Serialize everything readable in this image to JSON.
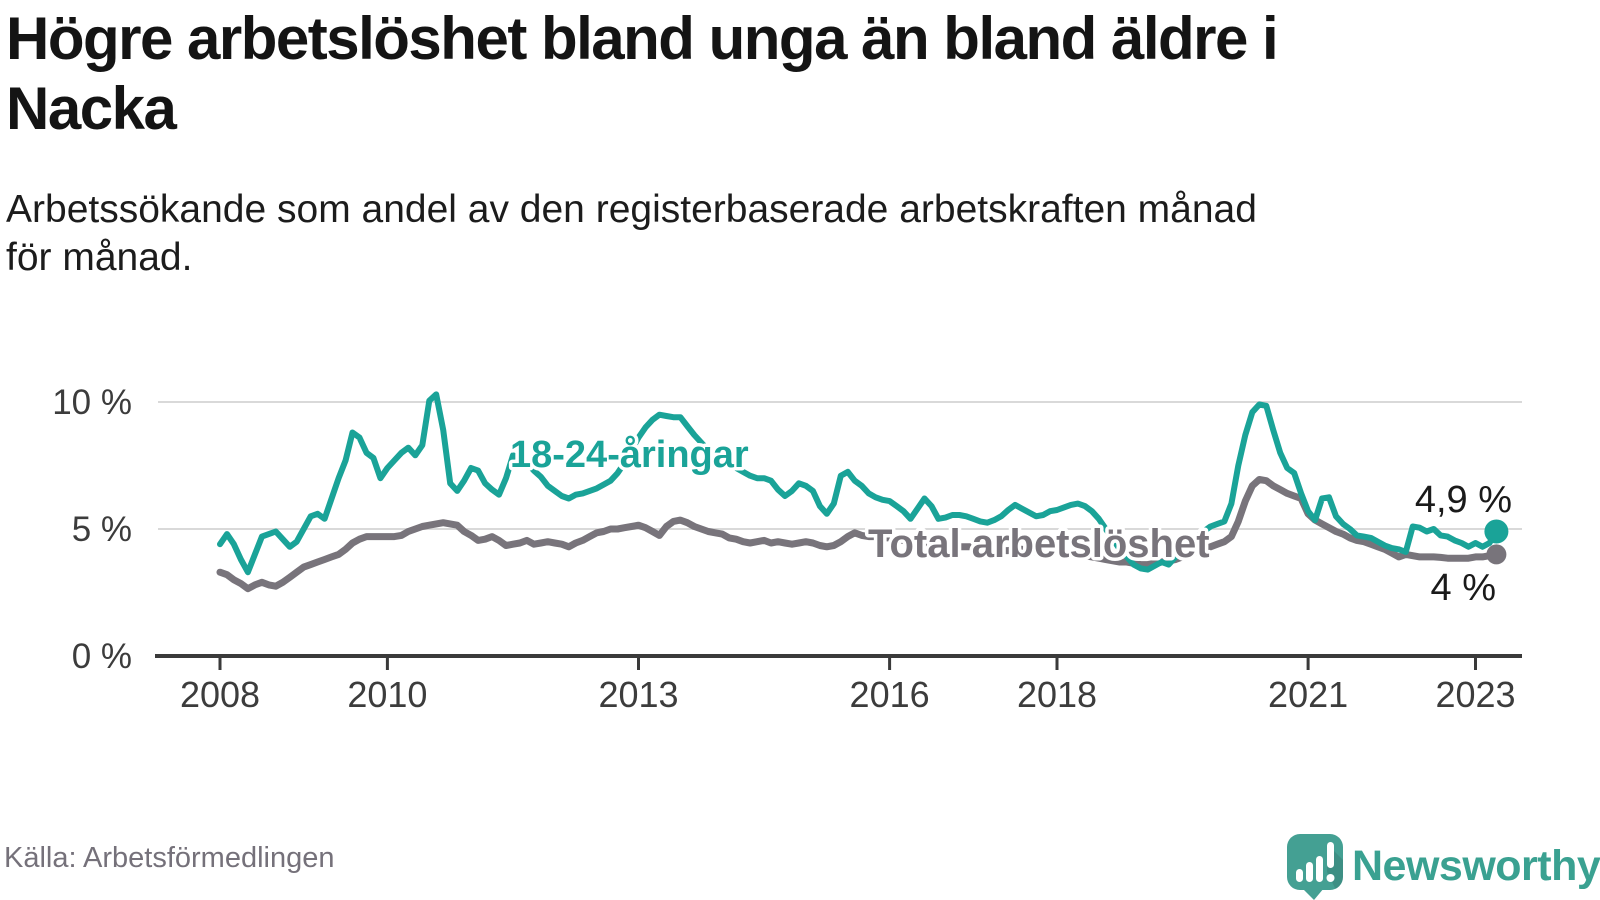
{
  "header": {
    "title": "Högre arbetslöshet bland unga än bland äldre i\nNacka",
    "subtitle": "Arbetssökande som andel av den registerbaserade arbetskraften månad\nför månad."
  },
  "chart_data": {
    "type": "line",
    "x_start_year": 2008,
    "x_interval": "monthly",
    "x_end": "2023-04",
    "x_ticks": [
      2008,
      2010,
      2013,
      2016,
      2018,
      2021,
      2023
    ],
    "y_ticks": [
      {
        "value": 0,
        "label": "0 %"
      },
      {
        "value": 5,
        "label": "5 %"
      },
      {
        "value": 10,
        "label": "10 %"
      }
    ],
    "ylim": [
      0,
      12
    ],
    "grid": "horizontal-at-5-and-10",
    "series": [
      {
        "name": "Total arbetslöshet",
        "label_text": "Total arbetslöshet",
        "color": "#78747b",
        "end_value_label": "4 %",
        "values": [
          3.3,
          3.2,
          3.0,
          2.85,
          2.65,
          2.8,
          2.9,
          2.8,
          2.75,
          2.9,
          3.1,
          3.3,
          3.5,
          3.6,
          3.7,
          3.8,
          3.9,
          4.0,
          4.2,
          4.45,
          4.6,
          4.7,
          4.7,
          4.7,
          4.7,
          4.7,
          4.75,
          4.9,
          5.0,
          5.1,
          5.15,
          5.2,
          5.25,
          5.2,
          5.15,
          4.9,
          4.75,
          4.55,
          4.6,
          4.7,
          4.55,
          4.35,
          4.4,
          4.45,
          4.55,
          4.4,
          4.45,
          4.5,
          4.45,
          4.4,
          4.3,
          4.45,
          4.55,
          4.7,
          4.85,
          4.9,
          5.0,
          5.0,
          5.05,
          5.1,
          5.15,
          5.05,
          4.9,
          4.75,
          5.1,
          5.3,
          5.35,
          5.25,
          5.1,
          5.0,
          4.9,
          4.85,
          4.8,
          4.65,
          4.6,
          4.5,
          4.45,
          4.5,
          4.55,
          4.45,
          4.5,
          4.45,
          4.4,
          4.45,
          4.5,
          4.45,
          4.35,
          4.3,
          4.35,
          4.5,
          4.7,
          4.85,
          4.75,
          4.7,
          4.7,
          4.65,
          4.65,
          4.6,
          4.55,
          4.5,
          4.5,
          4.45,
          4.4,
          4.4,
          4.35,
          4.35,
          4.3,
          4.3,
          4.3,
          4.25,
          4.2,
          4.2,
          4.15,
          4.15,
          4.2,
          4.2,
          4.15,
          4.1,
          4.1,
          4.1,
          4.1,
          4.05,
          4.0,
          4.0,
          3.95,
          3.9,
          3.85,
          3.8,
          3.75,
          3.7,
          3.7,
          3.65,
          3.6,
          3.6,
          3.65,
          3.7,
          3.75,
          3.8,
          3.9,
          4.0,
          4.1,
          4.2,
          4.3,
          4.4,
          4.5,
          4.7,
          5.3,
          6.1,
          6.7,
          6.95,
          6.9,
          6.7,
          6.55,
          6.4,
          6.3,
          6.2,
          5.6,
          5.35,
          5.2,
          5.05,
          4.9,
          4.8,
          4.65,
          4.55,
          4.5,
          4.4,
          4.3,
          4.2,
          4.05,
          3.9,
          4.0,
          3.95,
          3.9,
          3.9,
          3.9,
          3.88,
          3.85,
          3.85,
          3.85,
          3.85,
          3.9,
          3.9,
          3.95,
          4.0
        ]
      },
      {
        "name": "18-24-åringar",
        "label_text": "18-24-åringar",
        "color": "#1aa398",
        "end_value_label": "4,9 %",
        "values": [
          4.4,
          4.8,
          4.4,
          3.8,
          3.3,
          4.0,
          4.7,
          4.8,
          4.9,
          4.6,
          4.3,
          4.5,
          5.0,
          5.5,
          5.6,
          5.4,
          6.2,
          7.0,
          7.7,
          8.8,
          8.6,
          8.0,
          7.8,
          7.0,
          7.4,
          7.7,
          8.0,
          8.2,
          7.9,
          8.3,
          10.05,
          10.3,
          8.9,
          6.8,
          6.5,
          6.9,
          7.4,
          7.3,
          6.8,
          6.55,
          6.35,
          7.0,
          7.9,
          7.8,
          7.6,
          7.3,
          7.05,
          6.7,
          6.5,
          6.3,
          6.2,
          6.35,
          6.4,
          6.5,
          6.6,
          6.75,
          6.9,
          7.2,
          7.6,
          8.1,
          8.6,
          9.0,
          9.3,
          9.5,
          9.45,
          9.4,
          9.4,
          9.05,
          8.7,
          8.4,
          8.1,
          7.9,
          7.8,
          7.55,
          7.4,
          7.25,
          7.1,
          7.0,
          7.0,
          6.9,
          6.55,
          6.3,
          6.5,
          6.8,
          6.7,
          6.5,
          5.9,
          5.6,
          6.0,
          7.1,
          7.25,
          6.9,
          6.7,
          6.4,
          6.25,
          6.15,
          6.1,
          5.9,
          5.7,
          5.4,
          5.8,
          6.2,
          5.9,
          5.4,
          5.45,
          5.55,
          5.55,
          5.5,
          5.4,
          5.3,
          5.25,
          5.35,
          5.5,
          5.75,
          5.95,
          5.8,
          5.65,
          5.5,
          5.55,
          5.7,
          5.75,
          5.85,
          5.95,
          6.0,
          5.9,
          5.7,
          5.4,
          5.0,
          4.6,
          4.2,
          3.9,
          3.6,
          3.45,
          3.4,
          3.55,
          3.7,
          3.6,
          3.9,
          4.2,
          4.5,
          4.7,
          4.9,
          5.1,
          5.2,
          5.3,
          6.0,
          7.5,
          8.7,
          9.6,
          9.9,
          9.85,
          8.9,
          8.0,
          7.4,
          7.2,
          6.4,
          5.7,
          5.35,
          6.2,
          6.25,
          5.5,
          5.2,
          5.0,
          4.75,
          4.7,
          4.65,
          4.5,
          4.35,
          4.25,
          4.2,
          4.1,
          5.1,
          5.05,
          4.9,
          5.0,
          4.75,
          4.7,
          4.55,
          4.45,
          4.3,
          4.45,
          4.3,
          4.45,
          4.9
        ]
      }
    ],
    "end_labels": {
      "youth": "4,9 %",
      "total": "4 %"
    }
  },
  "footer": {
    "source": "Källa: Arbetsförmedlingen",
    "brand": "Newsworthy",
    "brand_color": "#3aa191",
    "logo_color": "#44a093"
  }
}
